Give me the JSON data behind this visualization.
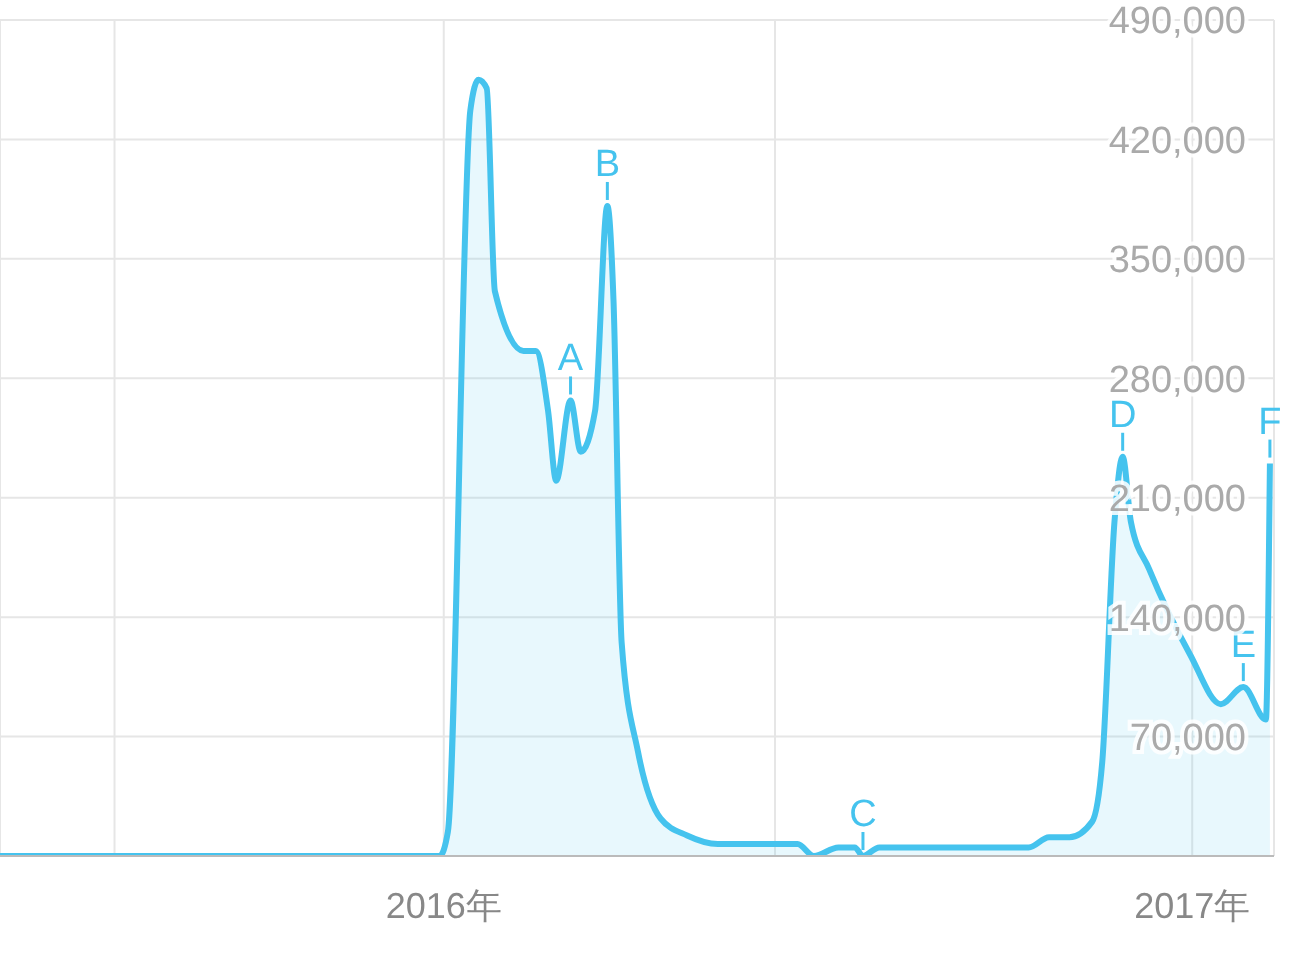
{
  "chart_data": {
    "type": "area",
    "color": "#45c3ee",
    "x": [
      "2015-05-29",
      "2015-12-30",
      "2016-01-03",
      "2016-01-14",
      "2016-01-18",
      "2016-01-22",
      "2016-01-26",
      "2016-02-09",
      "2016-02-15",
      "2016-02-21",
      "2016-02-25",
      "2016-03-03",
      "2016-03-08",
      "2016-03-15",
      "2016-03-21",
      "2016-03-24",
      "2016-03-28",
      "2016-04-05",
      "2016-04-16",
      "2016-04-29",
      "2016-05-14",
      "2016-06-22",
      "2016-06-30",
      "2016-07-12",
      "2016-07-20",
      "2016-07-24",
      "2016-08-01",
      "2016-10-13",
      "2016-10-23",
      "2016-11-02",
      "2016-11-13",
      "2016-11-18",
      "2016-11-24",
      "2016-11-28",
      "2016-12-02",
      "2016-12-11",
      "2016-12-31",
      "2017-01-15",
      "2017-01-26",
      "2017-02-06",
      "2017-02-08"
    ],
    "values": [
      0,
      0,
      14000,
      437000,
      455000,
      450000,
      331000,
      296000,
      296000,
      261000,
      220000,
      267000,
      237000,
      261000,
      381000,
      326000,
      125000,
      61000,
      22000,
      12000,
      7000,
      7000,
      0,
      5000,
      5000,
      0,
      5000,
      5000,
      11000,
      11000,
      20000,
      55000,
      196000,
      234000,
      196000,
      168000,
      118000,
      89000,
      99000,
      80000,
      230000
    ],
    "xlim": [
      "2015-05-29",
      "2017-02-10"
    ],
    "xticks": [
      {
        "value": "2015-07-24",
        "label": null
      },
      {
        "value": "2016-01-01",
        "label": "2016年"
      },
      {
        "value": "2016-06-11",
        "label": null
      },
      {
        "value": "2017-01-01",
        "label": "2017年"
      }
    ],
    "ylim": [
      0,
      490000
    ],
    "yticks": [
      {
        "value": 0,
        "label": null
      },
      {
        "value": 70000,
        "label": "70,000"
      },
      {
        "value": 140000,
        "label": "140,000"
      },
      {
        "value": 210000,
        "label": "210,000"
      },
      {
        "value": 280000,
        "label": "280,000"
      },
      {
        "value": 350000,
        "label": "350,000"
      },
      {
        "value": 420000,
        "label": "420,000"
      },
      {
        "value": 490000,
        "label": "490,000"
      }
    ],
    "grid": true,
    "annotations": [
      {
        "text": "A",
        "x": "2016-03-03",
        "y": 267000
      },
      {
        "text": "B",
        "x": "2016-03-21",
        "y": 381000
      },
      {
        "text": "C",
        "x": "2016-07-24",
        "y": 0
      },
      {
        "text": "D",
        "x": "2016-11-28",
        "y": 234000
      },
      {
        "text": "E",
        "x": "2017-01-26",
        "y": 99000
      },
      {
        "text": "F",
        "x": "2017-02-08",
        "y": 230000
      }
    ]
  }
}
